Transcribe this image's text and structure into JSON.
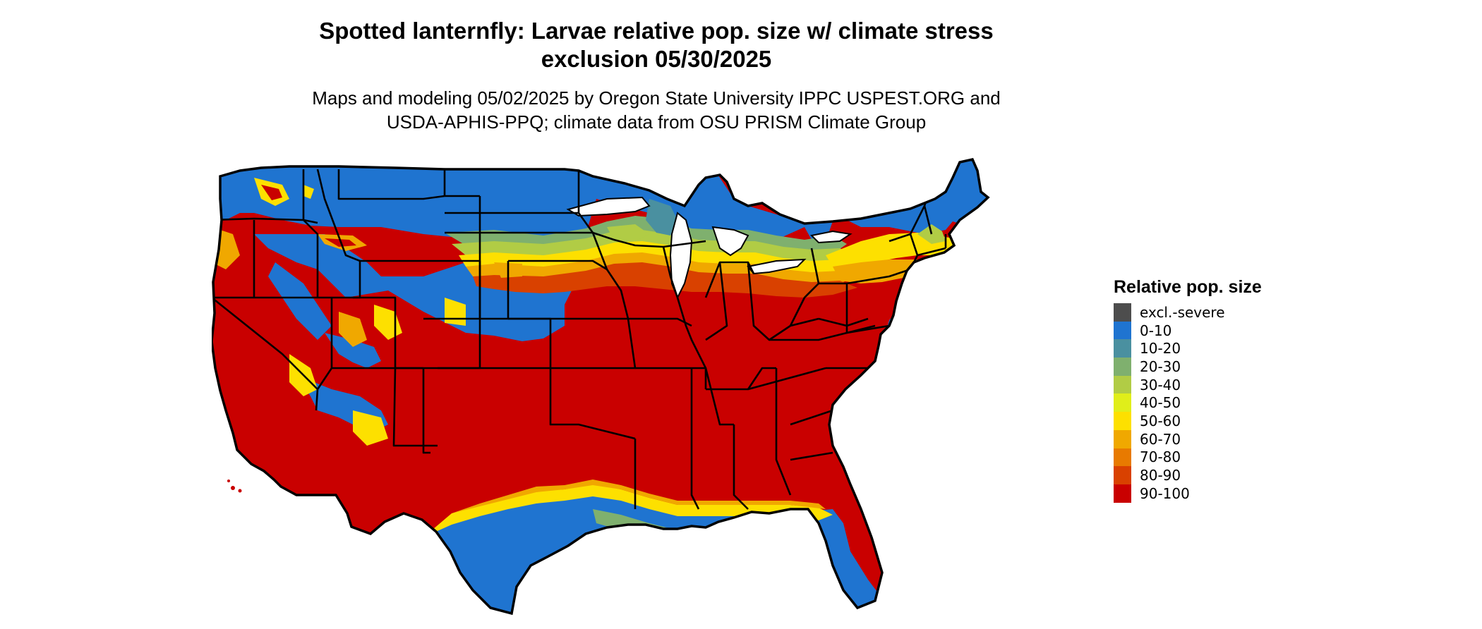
{
  "title": {
    "line1": "Spotted lanternfly: Larvae relative pop. size w/ climate stress",
    "line2": "exclusion 05/30/2025"
  },
  "subtitle": {
    "line1": "Maps and modeling 05/02/2025 by Oregon State University IPPC USPEST.ORG and",
    "line2": "USDA-APHIS-PPQ; climate data from OSU PRISM Climate Group"
  },
  "legend": {
    "title": "Relative pop. size",
    "items": [
      {
        "label": "excl.-severe",
        "color": "#4d4d4d"
      },
      {
        "label": "0-10",
        "color": "#1f74d0"
      },
      {
        "label": "10-20",
        "color": "#4a90a0"
      },
      {
        "label": "20-30",
        "color": "#7fb06e"
      },
      {
        "label": "30-40",
        "color": "#b1cc45"
      },
      {
        "label": "40-50",
        "color": "#e0ee1a"
      },
      {
        "label": "50-60",
        "color": "#fde000"
      },
      {
        "label": "60-70",
        "color": "#f0a800"
      },
      {
        "label": "70-80",
        "color": "#e87a00"
      },
      {
        "label": "80-90",
        "color": "#d94100"
      },
      {
        "label": "90-100",
        "color": "#c90000"
      }
    ]
  }
}
